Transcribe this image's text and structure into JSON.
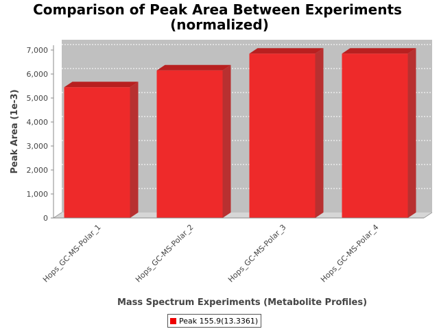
{
  "chart_data": {
    "type": "bar",
    "title_line1": "Comparison of Peak Area Between Experiments",
    "title_line2": "(normalized)",
    "xlabel": "Mass Spectrum Experiments (Metabolite Profiles)",
    "ylabel": "Peak Area (1e-3)",
    "categories": [
      "Hops_GC-MS-Polar_1",
      "Hops_GC-MS-Polar_2",
      "Hops_GC-MS-Polar_3",
      "Hops_GC-MS-Polar_4"
    ],
    "series": [
      {
        "name": "Peak 155.9(13.3361)",
        "values": [
          5450,
          6150,
          6850,
          6850
        ]
      }
    ],
    "ylim": [
      0,
      7000
    ],
    "yticks": [
      0,
      1000,
      2000,
      3000,
      4000,
      5000,
      6000,
      7000
    ],
    "ytick_labels": [
      "0",
      "1,000",
      "2,000",
      "3,000",
      "4,000",
      "5,000",
      "6,000",
      "7,000"
    ],
    "grid": true,
    "legend_position": "bottom-center",
    "colors": {
      "bar_front": "#ee2a2a",
      "bar_top": "#b82020",
      "bar_side": "#b83030",
      "plot_back": "#c0c0c0",
      "plot_floor": "#d6d6d6"
    }
  }
}
